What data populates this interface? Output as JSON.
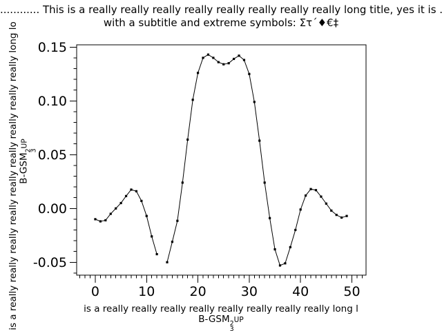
{
  "chart_data": {
    "type": "line",
    "title": "............ This is a really really really really really really really really long title, yes it is ............",
    "subtitle": "with a subtitle and extreme symbols: Στ´♦€‡",
    "xlabel_line1": "is a really really really really really really really really long l",
    "ylabel_line1": "is a really really really really really really really really really long lo",
    "axis_unit": {
      "prefix": "B-GSM",
      "sup": "2",
      "sub": "3",
      "suffix": "UP"
    },
    "xlim": [
      -3.63,
      52.76
    ],
    "ylim": [
      -0.062,
      0.1521
    ],
    "xticks": [
      {
        "v": 0,
        "label": "0"
      },
      {
        "v": 10,
        "label": "10"
      },
      {
        "v": 20,
        "label": "20"
      },
      {
        "v": 30,
        "label": "30"
      },
      {
        "v": 40,
        "label": "40"
      },
      {
        "v": 50,
        "label": "50"
      }
    ],
    "yticks": [
      {
        "v": 0.15,
        "label": "0.15"
      },
      {
        "v": 0.1,
        "label": "0.10"
      },
      {
        "v": 0.05,
        "label": "0.05"
      },
      {
        "v": 0.0,
        "label": "0.00"
      },
      {
        "v": -0.05,
        "label": "-0.05"
      }
    ],
    "minor_x_step": 1,
    "minor_y_step": 0.01,
    "grid": false,
    "legend": null,
    "line_color": "#000000",
    "marker": "square",
    "background": "#ffffff",
    "note": "point at x=13 is missing (gap in line)",
    "x": [
      0,
      1,
      2,
      3,
      4,
      5,
      6,
      7,
      8,
      9,
      10,
      11,
      12,
      13,
      14,
      15,
      16,
      17,
      18,
      19,
      20,
      21,
      22,
      23,
      24,
      25,
      26,
      27,
      28,
      29,
      30,
      31,
      32,
      33,
      34,
      35,
      36,
      37,
      38,
      39,
      40,
      41,
      42,
      43,
      44,
      45,
      46,
      47,
      48,
      49
    ],
    "y": [
      -0.01,
      -0.012,
      -0.011,
      -0.005,
      0.0,
      0.005,
      0.0115,
      0.0175,
      0.016,
      0.007,
      -0.007,
      -0.026,
      -0.0425,
      null,
      -0.05,
      -0.031,
      -0.0115,
      0.024,
      0.064,
      0.101,
      0.126,
      0.14,
      0.143,
      0.14,
      0.136,
      0.134,
      0.135,
      0.139,
      0.142,
      0.138,
      0.125,
      0.099,
      0.063,
      0.024,
      -0.009,
      -0.038,
      -0.053,
      -0.051,
      -0.036,
      -0.02,
      -0.001,
      0.012,
      0.018,
      0.017,
      0.011,
      0.0045,
      -0.002,
      -0.006,
      -0.0085,
      -0.007
    ]
  }
}
